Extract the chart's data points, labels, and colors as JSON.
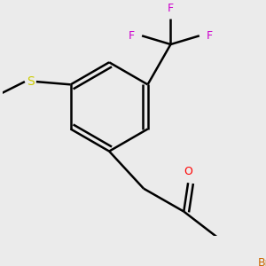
{
  "bg_color": "#ebebeb",
  "atom_colors": {
    "F": "#cc00cc",
    "S": "#cccc00",
    "O": "#ff0000",
    "Br": "#cc6600"
  },
  "bond_color": "#000000",
  "bond_width": 1.8,
  "dbo": 0.018
}
